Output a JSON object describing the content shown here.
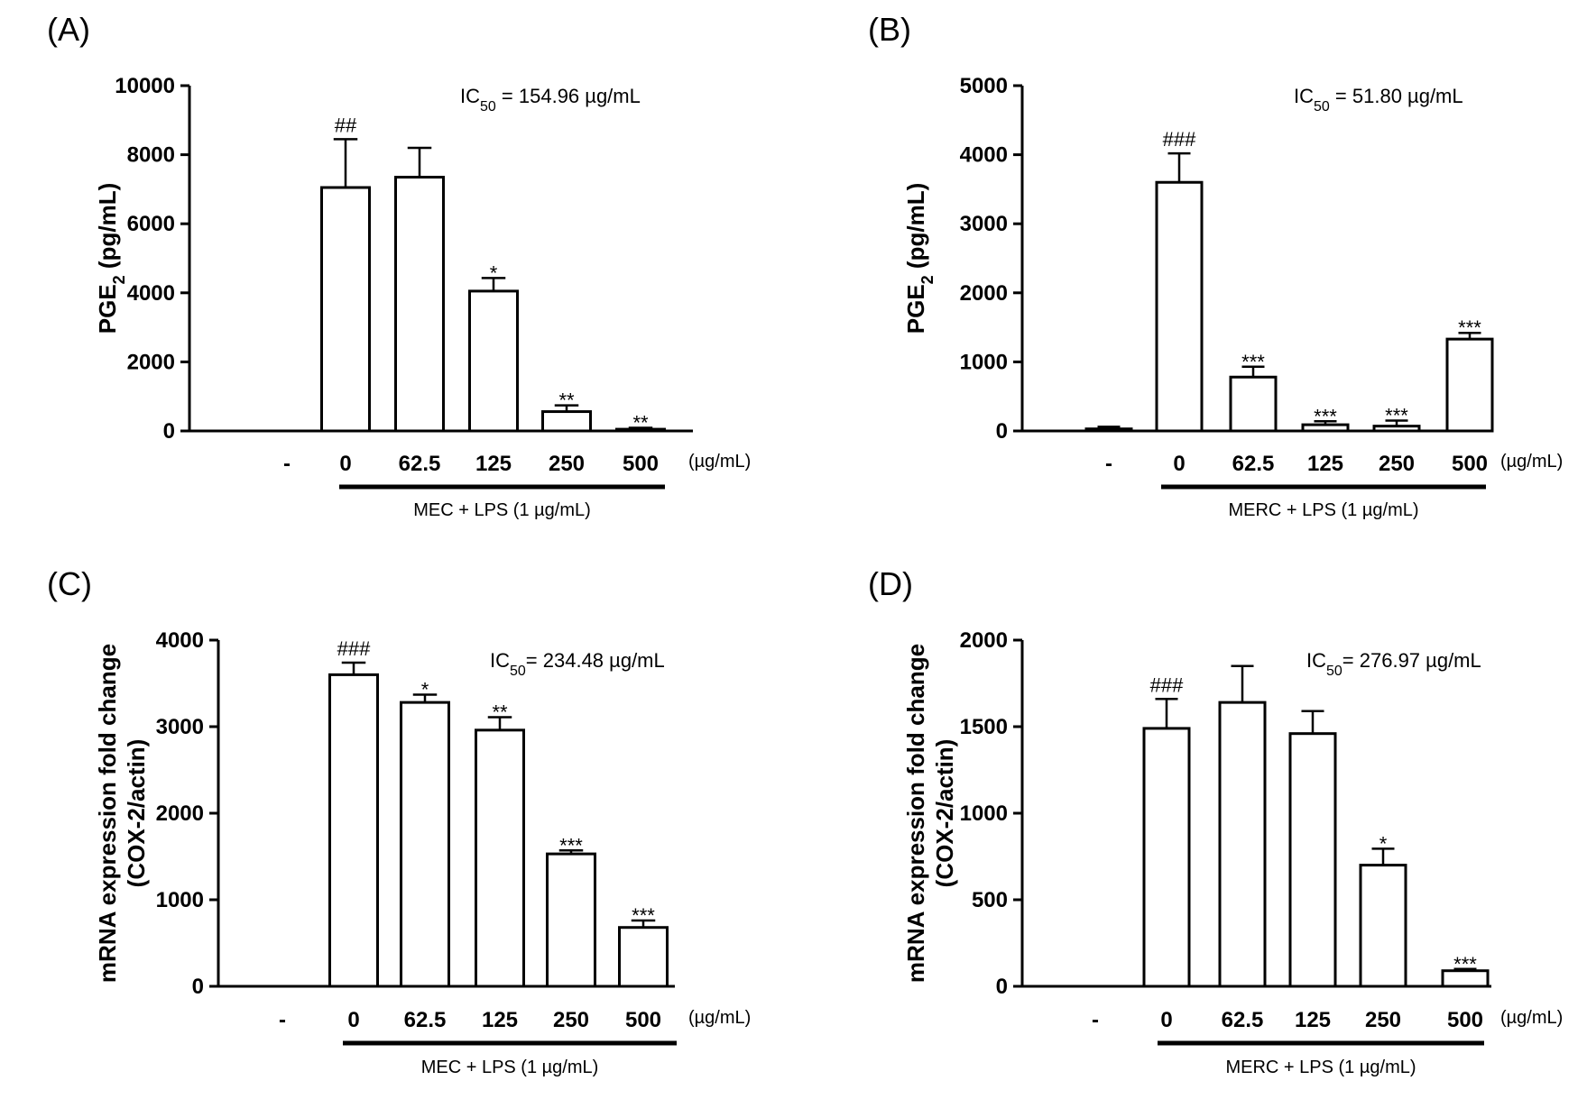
{
  "chart_data": [
    {
      "panel": "(A)",
      "type": "bar",
      "ylabel": "PGE",
      "ylabel_sub": "2",
      "ylabel_suffix": " (pg/mL)",
      "ylim": [
        0,
        10000
      ],
      "yticks": [
        "0",
        "2000",
        "4000",
        "6000",
        "8000",
        "10000"
      ],
      "ytick_values": [
        0,
        2000,
        4000,
        6000,
        8000,
        10000
      ],
      "categories": [
        "-",
        "0",
        "62.5",
        "125",
        "250",
        "500"
      ],
      "unit": "(µg/mL)",
      "group_label": "MEC  + LPS (1 µg/mL)",
      "ic50_prefix": "IC",
      "ic50_sub": "50",
      "ic50_suffix": " = 154.96 µg/mL",
      "values": [
        0,
        7050,
        7350,
        4050,
        560,
        50
      ],
      "errors": [
        0,
        1400,
        850,
        380,
        180,
        40
      ],
      "significance": [
        "",
        "##",
        "",
        "*",
        "**",
        "**"
      ],
      "grid": false
    },
    {
      "panel": "(B)",
      "type": "bar",
      "ylabel": "PGE",
      "ylabel_sub": "2",
      "ylabel_suffix": " (pg/mL)",
      "ylim": [
        0,
        5000
      ],
      "yticks": [
        "0",
        "1000",
        "2000",
        "3000",
        "4000",
        "5000"
      ],
      "ytick_values": [
        0,
        1000,
        2000,
        3000,
        4000,
        5000
      ],
      "categories": [
        "-",
        "0",
        "62.5",
        "125",
        "250",
        "500"
      ],
      "unit": "(µg/mL)",
      "group_label": "MERC + LPS (1 µg/mL)",
      "ic50_prefix": "IC",
      "ic50_sub": "50",
      "ic50_suffix": " = 51.80 µg/mL",
      "values": [
        30,
        3600,
        780,
        90,
        70,
        1330
      ],
      "errors": [
        30,
        420,
        150,
        50,
        80,
        90
      ],
      "significance": [
        "",
        "###",
        "***",
        "***",
        "***",
        "***"
      ],
      "grid": false
    },
    {
      "panel": "(C)",
      "type": "bar",
      "ylabel": "mRNA expression fold change",
      "ylabel2": "(COX-2/actin)",
      "ylim": [
        0,
        4000
      ],
      "yticks": [
        "0",
        "1000",
        "2000",
        "3000",
        "4000"
      ],
      "ytick_values": [
        0,
        1000,
        2000,
        3000,
        4000
      ],
      "categories": [
        "-",
        "0",
        "62.5",
        "125",
        "250",
        "500"
      ],
      "unit": "(µg/mL)",
      "group_label": "MEC  + LPS (1 µg/mL)",
      "ic50_prefix": "IC",
      "ic50_sub": "50",
      "ic50_suffix": "= 234.48 µg/mL",
      "values": [
        0,
        3600,
        3280,
        2960,
        1530,
        680
      ],
      "errors": [
        0,
        140,
        90,
        150,
        40,
        80
      ],
      "significance": [
        "",
        "###",
        "*",
        "**",
        "***",
        "***"
      ],
      "grid": false
    },
    {
      "panel": "(D)",
      "type": "bar",
      "ylabel": "mRNA expression fold change",
      "ylabel2": "(COX-2/actin)",
      "ylim": [
        0,
        2000
      ],
      "yticks": [
        "0",
        "500",
        "1000",
        "1500",
        "2000"
      ],
      "ytick_values": [
        0,
        500,
        1000,
        1500,
        2000
      ],
      "categories": [
        "-",
        "0",
        "62.5",
        "125",
        "250",
        "500"
      ],
      "unit": "(µg/mL)",
      "group_label": "MERC + LPS (1 µg/mL)",
      "ic50_prefix": "IC",
      "ic50_sub": "50",
      "ic50_suffix": "= 276.97 µg/mL",
      "values": [
        0,
        1490,
        1640,
        1460,
        700,
        90
      ],
      "errors": [
        0,
        170,
        210,
        130,
        95,
        10
      ],
      "significance": [
        "",
        "###",
        "",
        "",
        "*",
        "***"
      ],
      "grid": false
    }
  ]
}
